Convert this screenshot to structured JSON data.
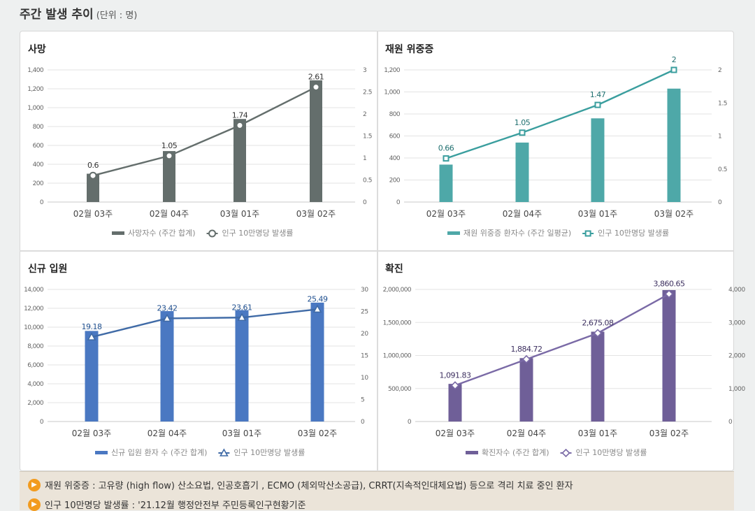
{
  "header": {
    "title": "주간 발생 추이",
    "unit": "(단위 : 명)"
  },
  "chart_data": [
    {
      "type": "bar",
      "title": "사망",
      "categories": [
        "02월 03주",
        "02월 04주",
        "03월 01주",
        "03월 02주"
      ],
      "series": [
        {
          "name": "사망자수 (주간 합계)",
          "type": "bar",
          "axis": "left",
          "values": [
            300,
            540,
            880,
            1290
          ],
          "color": "#646e6c"
        },
        {
          "name": "인구 10만명당 발생률",
          "type": "line",
          "axis": "right",
          "values": [
            0.6,
            1.05,
            1.74,
            2.61
          ],
          "labels": [
            "0.6",
            "1.05",
            "1.74",
            "2.61"
          ],
          "color": "#646e6c",
          "marker": "circle",
          "label_color": "#333333"
        }
      ],
      "y_left": {
        "range": [
          0,
          1400
        ],
        "ticks": [
          "0",
          "200",
          "400",
          "600",
          "800",
          "1,000",
          "1,200",
          "1,400"
        ]
      },
      "y_right": {
        "range": [
          0,
          3
        ],
        "ticks": [
          "0",
          "0.5",
          "1",
          "1.5",
          "2",
          "2.5",
          "3"
        ]
      },
      "grid": true,
      "legend": "bottom"
    },
    {
      "type": "bar",
      "title": "재원 위중증",
      "categories": [
        "02월 03주",
        "02월 04주",
        "03월 01주",
        "03월 02주"
      ],
      "series": [
        {
          "name": "재원 위중증 환자수 (주간 일평균)",
          "type": "bar",
          "axis": "left",
          "values": [
            340,
            540,
            760,
            1030
          ],
          "color": "#4ea8a8"
        },
        {
          "name": "인구 10만명당 발생률",
          "type": "line",
          "axis": "right",
          "values": [
            0.66,
            1.05,
            1.47,
            2
          ],
          "labels": [
            "0.66",
            "1.05",
            "1.47",
            "2"
          ],
          "color": "#3a9e9e",
          "marker": "square",
          "label_color": "#1f6f6f"
        }
      ],
      "y_left": {
        "range": [
          0,
          1200
        ],
        "ticks": [
          "0",
          "200",
          "400",
          "600",
          "800",
          "1,000",
          "1,200"
        ]
      },
      "y_right": {
        "range": [
          0,
          2
        ],
        "ticks": [
          "0",
          "0.5",
          "1",
          "1.5",
          "2"
        ]
      },
      "grid": true,
      "legend": "bottom"
    },
    {
      "type": "bar",
      "title": "신규 입원",
      "categories": [
        "02월 03주",
        "02월 04주",
        "03월 01주",
        "03월 02주"
      ],
      "series": [
        {
          "name": "신규 입원 환자 수 (주간 합계)",
          "type": "bar",
          "axis": "left",
          "values": [
            9600,
            11700,
            11800,
            12600
          ],
          "color": "#4a78c2"
        },
        {
          "name": "인구 10만명당 발생률",
          "type": "line",
          "axis": "right",
          "values": [
            19.18,
            23.42,
            23.61,
            25.49
          ],
          "labels": [
            "19.18",
            "23.42",
            "23.61",
            "25.49"
          ],
          "color": "#3f6aa6",
          "marker": "triangle",
          "label_color": "#1f4f8f"
        }
      ],
      "y_left": {
        "range": [
          0,
          14000
        ],
        "ticks": [
          "0",
          "2,000",
          "4,000",
          "6,000",
          "8,000",
          "10,000",
          "12,000",
          "14,000"
        ]
      },
      "y_right": {
        "range": [
          0,
          30
        ],
        "ticks": [
          "0",
          "5",
          "10",
          "15",
          "20",
          "25",
          "30"
        ]
      },
      "grid": true,
      "legend": "bottom"
    },
    {
      "type": "bar",
      "title": "확진",
      "categories": [
        "02월 03주",
        "02월 04주",
        "03월 01주",
        "03월 02주"
      ],
      "series": [
        {
          "name": "확진자수 (주간 합계)",
          "type": "bar",
          "axis": "left",
          "values": [
            570000,
            960000,
            1360000,
            1990000
          ],
          "color": "#6f5f98"
        },
        {
          "name": "인구 10만명당 발생률",
          "type": "line",
          "axis": "right",
          "values": [
            1091.83,
            1884.72,
            2675.08,
            3860.65
          ],
          "labels": [
            "1,091.83",
            "1,884.72",
            "2,675.08",
            "3,860.65"
          ],
          "color": "#7a6aa6",
          "marker": "diamond",
          "label_color": "#3d3060"
        }
      ],
      "y_left": {
        "range": [
          0,
          2000000
        ],
        "ticks": [
          "0",
          "500,000",
          "1,000,000",
          "1,500,000",
          "2,000,000"
        ]
      },
      "y_right": {
        "range": [
          0,
          4000
        ],
        "ticks": [
          "0",
          "1,000",
          "2,000",
          "3,000",
          "4,000"
        ]
      },
      "grid": true,
      "legend": "bottom"
    }
  ],
  "footer": {
    "notes": [
      {
        "icon": "speaker-icon",
        "text": "재원 위중증 : 고유량 (high flow) 산소요법, 인공호흡기 , ECMO (체외막산소공급), CRRT(지속적인대체요법) 등으로 격리 치료 중인 환자"
      },
      {
        "icon": "speaker-icon",
        "text": "인구 10만명당 발생률 : '21.12월 행정안전부 주민등록인구현황기준"
      }
    ]
  },
  "colors": {
    "footer_bg": "#ebe4d9",
    "note_icon": "#f29b1e",
    "grid": "#e3e3e3"
  }
}
